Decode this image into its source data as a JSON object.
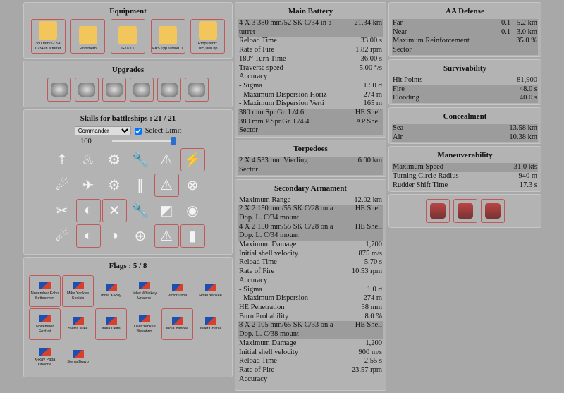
{
  "equipment": {
    "title": "Equipment",
    "items": [
      {
        "label": "380 mm/52 SK C/34 in a turret",
        "icon": "main-battery-icon"
      },
      {
        "label": "Pommern",
        "icon": "hull-icon"
      },
      {
        "label": "G7a T1",
        "icon": "torpedo-icon"
      },
      {
        "label": "FKS Typ 9 Mod. 1",
        "icon": "fire-control-icon"
      },
      {
        "label": "Propulsion: 165,000 hp",
        "icon": "propeller-icon"
      }
    ]
  },
  "upgrades": {
    "title": "Upgrades",
    "items": [
      "main-armaments-mod-icon",
      "damage-control-mod-icon",
      "secondary-mod-icon",
      "propulsion-mod-icon",
      "aiming-systems-mod-icon",
      "main-battery-mod-icon"
    ]
  },
  "skills": {
    "title": "Skills for battleships : 21 / 21",
    "select_value": "Commander",
    "select_limit_label": "Select Limit",
    "select_limit_checked": true,
    "limit_value": "100",
    "slider_percent": 100,
    "grid": [
      {
        "g": "⇡",
        "sel": false
      },
      {
        "g": "♨",
        "sel": false
      },
      {
        "g": "⚙",
        "sel": false
      },
      {
        "g": "🔧",
        "sel": false
      },
      {
        "g": "⚠",
        "sel": false
      },
      {
        "g": "⚡",
        "sel": true
      },
      {
        "g": "☄",
        "sel": false
      },
      {
        "g": "✈",
        "sel": false
      },
      {
        "g": "⚙",
        "sel": false
      },
      {
        "g": "∥",
        "sel": false
      },
      {
        "g": "⚠",
        "sel": true
      },
      {
        "g": "⊗",
        "sel": false
      },
      {
        "g": "✂",
        "sel": false
      },
      {
        "g": "◐",
        "sel": true
      },
      {
        "g": "✕",
        "sel": true
      },
      {
        "g": "🔧",
        "sel": false
      },
      {
        "g": "◩",
        "sel": false
      },
      {
        "g": "◉",
        "sel": false
      },
      {
        "g": "☄",
        "sel": false
      },
      {
        "g": "◐",
        "sel": true
      },
      {
        "g": "◑",
        "sel": false
      },
      {
        "g": "⊕",
        "sel": false
      },
      {
        "g": "⚠",
        "sel": true
      },
      {
        "g": "▮",
        "sel": true
      }
    ]
  },
  "flags": {
    "title": "Flags : 5 / 8",
    "items": [
      {
        "label": "November Echo Setteseven",
        "sel": true
      },
      {
        "label": "Mike Yankee Soxisix",
        "sel": true
      },
      {
        "label": "India X-Ray",
        "sel": false
      },
      {
        "label": "Juliet Whiskey Unaone",
        "sel": false
      },
      {
        "label": "Victor Lima",
        "sel": false
      },
      {
        "label": "Hotel Yankee",
        "sel": false
      },
      {
        "label": "November Foxtrot",
        "sel": true
      },
      {
        "label": "Sierra Mike",
        "sel": false
      },
      {
        "label": "India Delta",
        "sel": true
      },
      {
        "label": "Juliet Yankee Bissotwo",
        "sel": false
      },
      {
        "label": "India Yankee",
        "sel": true
      },
      {
        "label": "Juliet Charlie",
        "sel": false
      },
      {
        "label": "X-Ray Papa Unaone",
        "sel": false
      },
      {
        "label": "Sierra Bravo",
        "sel": false
      }
    ]
  },
  "main_battery": {
    "title": "Main Battery",
    "rows": [
      {
        "l": "4 X 3 380 mm/52 SK C/34 in a turret",
        "v": "21.34 km",
        "sh": true
      },
      {
        "l": "Reload Time",
        "v": "33.00 s",
        "sh": false
      },
      {
        "l": "Rate of Fire",
        "v": "1.82 rpm",
        "sh": false
      },
      {
        "l": "180° Turn Time",
        "v": "36.00 s",
        "sh": false
      },
      {
        "l": "Traverse speed",
        "v": "5.00 °/s",
        "sh": false
      },
      {
        "l": "Accuracy",
        "v": "",
        "sh": false
      },
      {
        "l": "- Sigma",
        "v": "1.50 σ",
        "sh": false
      },
      {
        "l": "- Maximum Dispersion Horiz",
        "v": "274 m",
        "sh": false
      },
      {
        "l": "- Maximum Dispersion Verti",
        "v": "165 m",
        "sh": false
      },
      {
        "l": "380 mm Spr.Gr. L/4.6",
        "v": "HE Shell",
        "sh": true
      },
      {
        "l": "380 mm P.Spr.Gr. L/4.4",
        "v": "AP Shell",
        "sh": true
      },
      {
        "l": "Sector",
        "v": "",
        "sh": true
      }
    ]
  },
  "torpedoes": {
    "title": "Torpedoes",
    "rows": [
      {
        "l": "2 X 4 533 mm Vierling",
        "v": "6.00 km",
        "sh": true
      },
      {
        "l": "Sector",
        "v": "",
        "sh": true
      }
    ]
  },
  "secondary": {
    "title": "Secondary Armament",
    "rows": [
      {
        "l": "Maximum Range",
        "v": "12.02 km",
        "sh": false
      },
      {
        "l": "2 X 2 150 mm/55 SK C/28 on a Dop. L. C/34 mount",
        "v": "HE Shell",
        "sh": true
      },
      {
        "l": "4 X 2 150 mm/55 SK C/28 on a Dop. L. C/34 mount",
        "v": "HE Shell",
        "sh": true
      },
      {
        "l": "Maximum Damage",
        "v": "1,700",
        "sh": false
      },
      {
        "l": "Initial shell velocity",
        "v": "875 m/s",
        "sh": false
      },
      {
        "l": "Reload Time",
        "v": "5.70 s",
        "sh": false
      },
      {
        "l": "Rate of Fire",
        "v": "10.53 rpm",
        "sh": false
      },
      {
        "l": "Accuracy",
        "v": "",
        "sh": false
      },
      {
        "l": "- Sigma",
        "v": "1.0 σ",
        "sh": false
      },
      {
        "l": "- Maximum Dispersion",
        "v": "274 m",
        "sh": false
      },
      {
        "l": "HE Penetration",
        "v": "38 mm",
        "sh": false
      },
      {
        "l": "Burn Probability",
        "v": "8.0 %",
        "sh": false
      },
      {
        "l": "8 X 2 105 mm/65 SK C/33 on a Dop. L. C/38 mount",
        "v": "HE Shell",
        "sh": true
      },
      {
        "l": "Maximum Damage",
        "v": "1,200",
        "sh": false
      },
      {
        "l": "Initial shell velocity",
        "v": "900 m/s",
        "sh": false
      },
      {
        "l": "Reload Time",
        "v": "2.55 s",
        "sh": false
      },
      {
        "l": "Rate of Fire",
        "v": "23.57 rpm",
        "sh": false
      },
      {
        "l": "Accuracy",
        "v": "",
        "sh": false
      }
    ]
  },
  "aa": {
    "title": "AA Defense",
    "rows": [
      {
        "l": "Far",
        "v": "0.1 - 5.2 km",
        "sh": true
      },
      {
        "l": "Near",
        "v": "0.1 - 3.0 km",
        "sh": true
      },
      {
        "l": "Maximum Reinforcement",
        "v": "35.0 %",
        "sh": true
      },
      {
        "l": "Sector",
        "v": "",
        "sh": true
      }
    ]
  },
  "survivability": {
    "title": "Survivability",
    "rows": [
      {
        "l": "Hit Points",
        "v": "81,900",
        "sh": false
      },
      {
        "l": "Fire",
        "v": "48.0 s",
        "sh": true
      },
      {
        "l": "Flooding",
        "v": "40.0 s",
        "sh": true
      }
    ]
  },
  "concealment": {
    "title": "Concealment",
    "rows": [
      {
        "l": "Sea",
        "v": "13.58 km",
        "sh": true
      },
      {
        "l": "Air",
        "v": "10.38 km",
        "sh": true
      }
    ]
  },
  "maneuverability": {
    "title": "Maneuverability",
    "rows": [
      {
        "l": "Maximum Speed",
        "v": "31.0 kts",
        "sh": true
      },
      {
        "l": "Turning Circle Radius",
        "v": "940 m",
        "sh": false
      },
      {
        "l": "Rudder Shift Time",
        "v": "17.3 s",
        "sh": false
      }
    ]
  },
  "consumables": [
    "damage-control-party-icon",
    "repair-party-icon",
    "secondary-battery-icon"
  ],
  "colors": {
    "selected_border": "#c05a5a",
    "equipment_icon": "#f2c65a",
    "shaded_row": "#9c9c9c"
  }
}
